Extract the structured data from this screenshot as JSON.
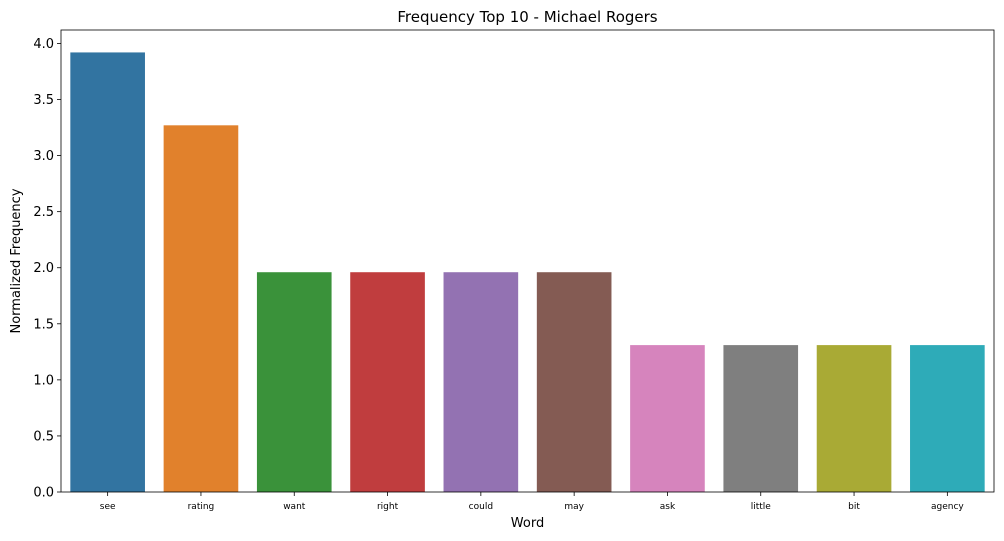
{
  "chart_data": {
    "type": "bar",
    "title": "Frequency Top 10 - Michael Rogers",
    "xlabel": "Word",
    "ylabel": "Normalized Frequency",
    "categories": [
      "see",
      "rating",
      "want",
      "right",
      "could",
      "may",
      "ask",
      "little",
      "bit",
      "agency"
    ],
    "values": [
      3.92,
      3.27,
      1.96,
      1.96,
      1.96,
      1.96,
      1.31,
      1.31,
      1.31,
      1.31
    ],
    "colors": [
      "#3274a1",
      "#e1812c",
      "#3a923a",
      "#c03d3e",
      "#9372b2",
      "#845b53",
      "#d684bd",
      "#7f7f7f",
      "#a9aa35",
      "#2eabb8"
    ],
    "ylim": [
      0,
      4.12
    ],
    "yticks": [
      "0.0",
      "0.5",
      "1.0",
      "1.5",
      "2.0",
      "2.5",
      "3.0",
      "3.5",
      "4.0"
    ],
    "grid": false,
    "legend": "none"
  }
}
